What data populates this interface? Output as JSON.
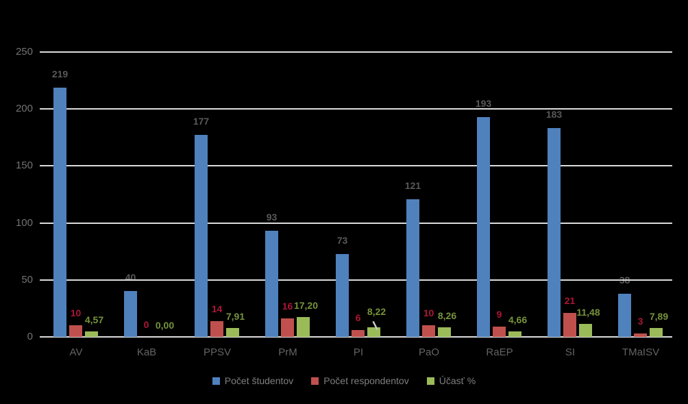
{
  "chart_data": {
    "type": "bar",
    "title": "",
    "categories": [
      "AV",
      "KaB",
      "PPSV",
      "PrM",
      "PI",
      "PaO",
      "RaEP",
      "SI",
      "TMaISV"
    ],
    "series": [
      {
        "name": "Počet študentov",
        "color": "#4F81BD",
        "label_color": "#595959",
        "values": [
          219,
          40,
          177,
          93,
          73,
          121,
          193,
          183,
          38
        ],
        "labels": [
          "219",
          "40",
          "177",
          "93",
          "73",
          "121",
          "193",
          "183",
          "38"
        ]
      },
      {
        "name": "Počet respondentov",
        "color": "#C0504D",
        "label_color": "#AD1638",
        "values": [
          10,
          0,
          14,
          16,
          6,
          10,
          9,
          21,
          3
        ],
        "labels": [
          "10",
          "0",
          "14",
          "16",
          "6",
          "10",
          "9",
          "21",
          "3"
        ]
      },
      {
        "name": "Účasť %",
        "color": "#9BBB59",
        "label_color": "#77933C",
        "values": [
          4.57,
          0,
          7.91,
          17.2,
          8.22,
          8.26,
          4.66,
          11.48,
          7.89
        ],
        "labels": [
          "4,57",
          "0,00",
          "7,91",
          "17,20",
          "8,22",
          "8,26",
          "4,66",
          "11,48",
          "7,89"
        ]
      }
    ],
    "ylim": [
      0,
      250
    ],
    "ytick_step": 50,
    "ytick_labels": [
      "0",
      "50",
      "100",
      "150",
      "200",
      "250"
    ],
    "grid": true,
    "legend_position": "bottom",
    "leader_line": {
      "category_index": 4,
      "series_index": 2
    }
  },
  "colors": {
    "background": "#000000",
    "gridline": "#DCDCDC",
    "tick_label": "#737373",
    "category_label": "#646464",
    "legend_text": "#7F7F7F",
    "leader_line": "#C8C8C8"
  }
}
